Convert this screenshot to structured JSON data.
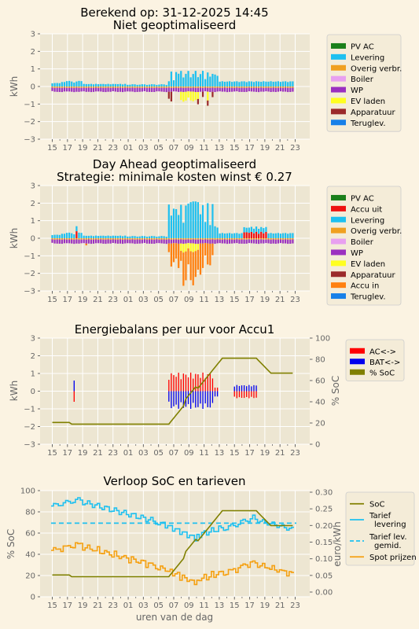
{
  "colors": {
    "page_bg": "#fbf3e2",
    "plot_bg": "#ede6d2",
    "grid": "#ffffff",
    "pv_ac": "#1a7f1a",
    "accu_uit": "#ee1111",
    "levering": "#1ec0f0",
    "overig_verbr": "#f0a020",
    "boiler": "#e8a0f0",
    "wp": "#9b30c0",
    "ev_laden": "#ffff20",
    "apparatuur": "#9b2b2b",
    "accu_in": "#ff8010",
    "teruglev": "#1880e8",
    "ac": "#ff0000",
    "bat": "#0000ee",
    "soc": "#808000",
    "tarief_levering": "#1ec0f0",
    "tarief_gemid": "#1ec0f0",
    "spot": "#f5a010"
  },
  "chart_data": [
    {
      "type": "bar",
      "title_line1": "Berekend op: 31-12-2025 14:45",
      "title_line2": "Niet geoptimaliseerd",
      "ylabel": "kWh",
      "xlabel": "",
      "ylim": [
        -3,
        3
      ],
      "yticks": [
        "3",
        "2",
        "1",
        "0",
        "−1",
        "−2",
        "−3"
      ],
      "xticks": [
        "15",
        "17",
        "19",
        "21",
        "23",
        "01",
        "03",
        "05",
        "07",
        "09",
        "11",
        "13",
        "15",
        "17",
        "19",
        "21",
        "23"
      ],
      "grid": true,
      "legend_position": "right",
      "legend": [
        {
          "label": "PV AC",
          "color": "#1a7f1a"
        },
        {
          "label": "Levering",
          "color": "#1ec0f0"
        },
        {
          "label": "Overig verbr.",
          "color": "#f0a020"
        },
        {
          "label": "Boiler",
          "color": "#e8a0f0"
        },
        {
          "label": "WP",
          "color": "#9b30c0"
        },
        {
          "label": "EV laden",
          "color": "#ffff20"
        },
        {
          "label": "Apparatuur",
          "color": "#9b2b2b"
        },
        {
          "label": "Teruglev.",
          "color": "#1880e8"
        }
      ]
    },
    {
      "type": "bar",
      "title_line1": "Day Ahead geoptimaliseerd",
      "title_line2": "Strategie: minimale kosten winst € 0.27",
      "ylabel": "kWh",
      "xlabel": "",
      "ylim": [
        -3,
        3
      ],
      "yticks": [
        "3",
        "2",
        "1",
        "0",
        "−1",
        "−2",
        "−3"
      ],
      "xticks": [
        "15",
        "17",
        "19",
        "21",
        "23",
        "01",
        "03",
        "05",
        "07",
        "09",
        "11",
        "13",
        "15",
        "17",
        "19",
        "21",
        "23"
      ],
      "grid": true,
      "legend_position": "right",
      "legend": [
        {
          "label": "PV AC",
          "color": "#1a7f1a"
        },
        {
          "label": "Accu uit",
          "color": "#ee1111"
        },
        {
          "label": "Levering",
          "color": "#1ec0f0"
        },
        {
          "label": "Overig verbr.",
          "color": "#f0a020"
        },
        {
          "label": "Boiler",
          "color": "#e8a0f0"
        },
        {
          "label": "WP",
          "color": "#9b30c0"
        },
        {
          "label": "EV laden",
          "color": "#ffff20"
        },
        {
          "label": "Apparatuur",
          "color": "#9b2b2b"
        },
        {
          "label": "Accu in",
          "color": "#ff8010"
        },
        {
          "label": "Teruglev.",
          "color": "#1880e8"
        }
      ]
    },
    {
      "type": "bar",
      "title": "Energiebalans per uur voor Accu1",
      "ylabel": "kWh",
      "y2label": "% SoC",
      "xlabel": "",
      "ylim": [
        -3,
        3
      ],
      "y2lim": [
        0,
        100
      ],
      "yticks": [
        "3",
        "2",
        "1",
        "0",
        "−1",
        "−2",
        "−3"
      ],
      "y2ticks": [
        "100",
        "80",
        "60",
        "40",
        "20",
        "0"
      ],
      "xticks": [
        "15",
        "17",
        "19",
        "21",
        "23",
        "01",
        "03",
        "05",
        "07",
        "09",
        "11",
        "13",
        "15",
        "17",
        "19",
        "21",
        "23"
      ],
      "grid": true,
      "legend_position": "right",
      "legend": [
        {
          "label": "AC<->",
          "color": "#ff0000"
        },
        {
          "label": "BAT<->",
          "color": "#0000ee"
        },
        {
          "label": "% SoC",
          "color": "#808000"
        }
      ]
    },
    {
      "type": "line",
      "title": "Verloop SoC en tarieven",
      "xlabel": "uren van de dag",
      "ylabel": "% SoC",
      "y2label": "euro/kWh",
      "ylim": [
        0,
        100
      ],
      "y2lim": [
        -0.01,
        0.3
      ],
      "yticks": [
        "100",
        "80",
        "60",
        "40",
        "20",
        "0"
      ],
      "y2ticks": [
        "0.30",
        "0.25",
        "0.20",
        "0.15",
        "0.10",
        "0.05",
        "0.00"
      ],
      "xticks": [
        "15",
        "17",
        "19",
        "21",
        "23",
        "01",
        "03",
        "05",
        "07",
        "09",
        "11",
        "13",
        "15",
        "17",
        "19",
        "21",
        "23"
      ],
      "grid": true,
      "legend_position": "right",
      "legend": [
        {
          "label": "SoC",
          "color": "#808000",
          "dash": false
        },
        {
          "label": "Tarief",
          "label2": "levering",
          "color": "#1ec0f0",
          "dash": false
        },
        {
          "label": "Tarief lev.",
          "label2": "gemid.",
          "color": "#1ec0f0",
          "dash": true
        },
        {
          "label": "Spot prijzen",
          "color": "#f5a010",
          "dash": false
        }
      ],
      "tarief_gemid": 0.205
    }
  ]
}
